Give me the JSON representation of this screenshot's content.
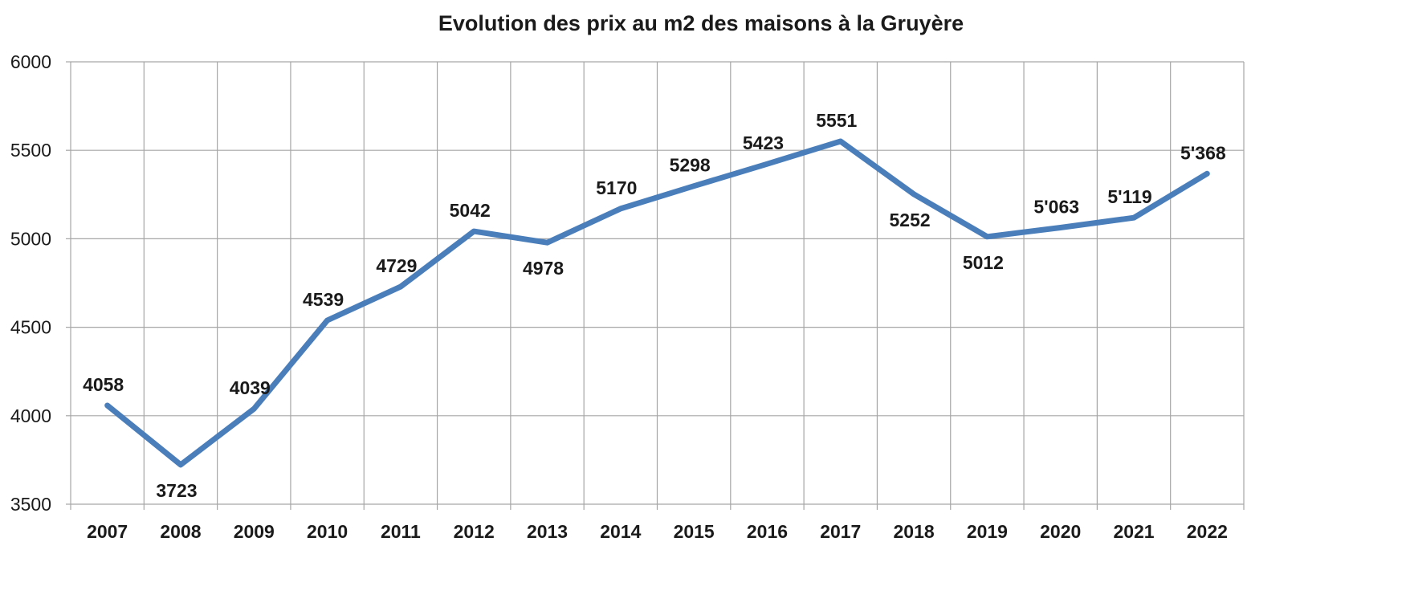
{
  "chart_data": {
    "type": "line",
    "title": "Evolution des prix au m2 des maisons à la Gruyère",
    "xlabel": "",
    "ylabel": "",
    "categories": [
      "2007",
      "2008",
      "2009",
      "2010",
      "2011",
      "2012",
      "2013",
      "2014",
      "2015",
      "2016",
      "2017",
      "2018",
      "2019",
      "2020",
      "2021",
      "2022"
    ],
    "series": [
      {
        "values": [
          4058,
          3723,
          4039,
          4539,
          4729,
          5042,
          4978,
          5170,
          5298,
          5423,
          5551,
          5252,
          5012,
          5063,
          5119,
          5368
        ],
        "labels": [
          "4058",
          "3723",
          "4039",
          "4539",
          "4729",
          "5042",
          "4978",
          "5170",
          "5298",
          "5423",
          "5551",
          "5252",
          "5012",
          "5'063",
          "5'119",
          "5'368"
        ],
        "label_positions": [
          "above",
          "below",
          "above",
          "above",
          "above",
          "above",
          "below",
          "above",
          "above",
          "above",
          "above",
          "below",
          "below",
          "above",
          "above",
          "above"
        ]
      }
    ],
    "ylim": [
      3500,
      6000
    ],
    "yticks": [
      3500,
      4000,
      4500,
      5000,
      5500,
      6000
    ],
    "grid": true,
    "legend": "none",
    "colors": {
      "line": "#4a7ebb",
      "grid": "#a6a6a6",
      "text": "#1a1a1a"
    }
  }
}
